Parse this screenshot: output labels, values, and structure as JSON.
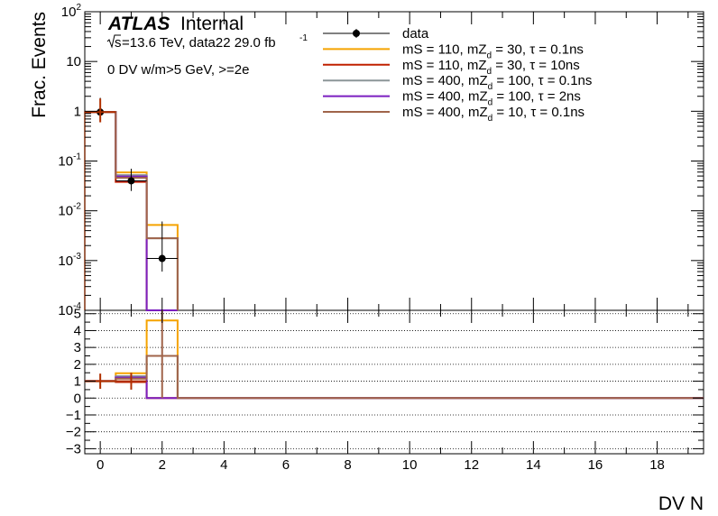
{
  "chart_data": [
    {
      "panel": "main",
      "type": "step-histogram",
      "ylabel": "Frac. Events",
      "yscale": "log",
      "ylim": [
        0.0001,
        100
      ],
      "xlim": [
        -0.5,
        19.5
      ],
      "bin_edges": [
        -0.5,
        0.5,
        1.5,
        2.5,
        3.5,
        4.5,
        5.5,
        6.5,
        7.5,
        8.5,
        9.5,
        10.5,
        11.5,
        12.5,
        13.5,
        14.5,
        15.5,
        16.5,
        17.5,
        18.5,
        19.5
      ],
      "y_tick_labels": [
        "10^-4",
        "10^-3",
        "10^-2",
        "10^-1",
        "1",
        "10",
        "10^2"
      ],
      "series": [
        {
          "name": "data",
          "kind": "points",
          "color": "#000000",
          "x": [
            0,
            1,
            2
          ],
          "y": [
            0.96,
            0.04,
            0.0011
          ],
          "yerr": [
            [
              0.3,
              0.015,
              0.0005
            ],
            [
              0.9,
              0.03,
              0.005
            ]
          ]
        },
        {
          "legend_label": [
            "mS = 110, mZ",
            "d",
            " = 30, ",
            "τ",
            " = 0.1ns"
          ],
          "kind": "hist",
          "color": "#f5a300",
          "values": [
            0.97,
            0.059,
            0.0052
          ]
        },
        {
          "legend_label": [
            "mS = 110, mZ",
            "d",
            " = 30, ",
            "τ",
            " = 10ns"
          ],
          "kind": "hist",
          "color": "#c02000",
          "values": [
            0.97,
            0.038,
            0
          ]
        },
        {
          "legend_label": [
            "mS = 400, mZ",
            "d",
            " = 100, ",
            "τ",
            " = 0.1ns"
          ],
          "kind": "hist",
          "color": "#8c9698",
          "values": [
            0.96,
            0.052,
            0.0028
          ]
        },
        {
          "legend_label": [
            "mS = 400, mZ",
            "d",
            " = 100, ",
            "τ",
            " = 2ns"
          ],
          "kind": "hist",
          "color": "#7b1fc0",
          "values": [
            0.97,
            0.049,
            0
          ]
        },
        {
          "legend_label": [
            "mS = 400, mZ",
            "d",
            " = 10, ",
            "τ",
            " = 0.1ns"
          ],
          "kind": "hist",
          "color": "#a0644a",
          "values": [
            0.97,
            0.046,
            0.0028
          ]
        }
      ]
    },
    {
      "panel": "ratio",
      "type": "step-histogram",
      "xlabel": "DV N",
      "ylim": [
        -3.3,
        5.2
      ],
      "xlim": [
        -0.5,
        19.5
      ],
      "y_ticks": [
        -3,
        -2,
        -1,
        0,
        1,
        2,
        3,
        4,
        5
      ],
      "x_ticks": [
        0,
        2,
        4,
        6,
        8,
        10,
        12,
        14,
        16,
        18
      ],
      "grid": "horizontal dotted",
      "series": [
        {
          "name": "data",
          "kind": "points",
          "color": "#b03000",
          "x": [
            0,
            1
          ],
          "y": [
            1,
            1
          ],
          "yerr": [
            0.45,
            0.5
          ],
          "x_extent": 0.5
        },
        {
          "kind": "hist",
          "color": "#f5a300",
          "values": [
            1.01,
            1.47,
            4.6
          ]
        },
        {
          "kind": "hist",
          "color": "#c02000",
          "values": [
            1.01,
            0.95,
            0
          ]
        },
        {
          "kind": "hist",
          "color": "#8c9698",
          "values": [
            1.0,
            1.3,
            2.5
          ]
        },
        {
          "kind": "hist",
          "color": "#7b1fc0",
          "values": [
            1.01,
            1.22,
            0
          ]
        },
        {
          "kind": "hist",
          "color": "#a0644a",
          "values": [
            1.01,
            1.15,
            2.5
          ]
        }
      ]
    }
  ],
  "annotations": {
    "atlas": "ATLAS",
    "internal": "Internal",
    "lumi_sqrt": "s",
    "lumi_rest": "=13.6 TeV, data22 29.0 fb",
    "lumi_sup": "-1",
    "selection": "0 DV w/m>5 GeV, >=2e"
  }
}
